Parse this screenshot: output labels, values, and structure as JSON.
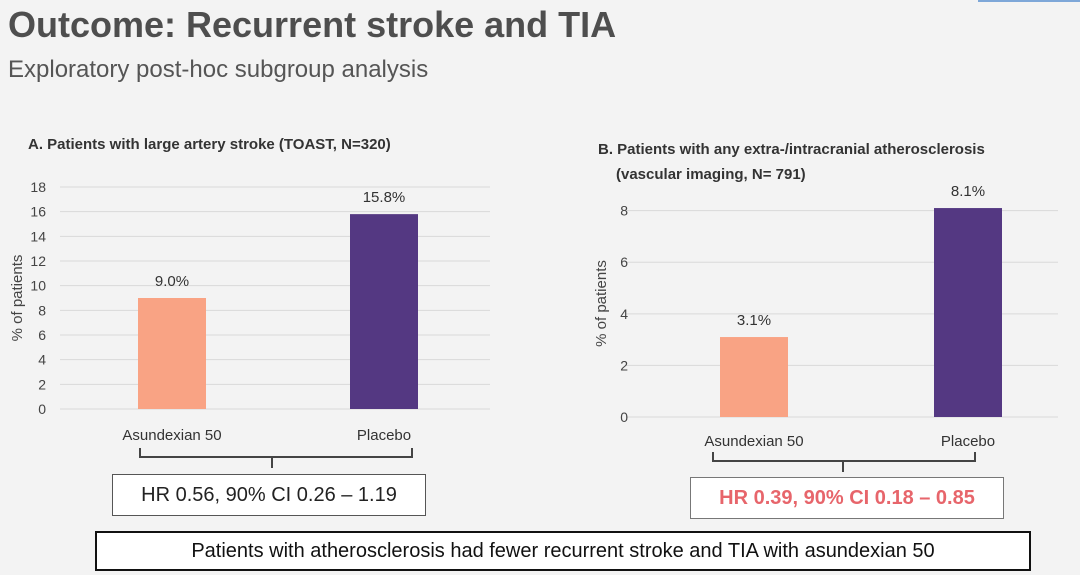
{
  "header": {
    "title": "Outcome: Recurrent stroke and TIA",
    "subtitle": "Exploratory post-hoc subgroup analysis"
  },
  "colors": {
    "asundexian": "#f9a384",
    "placebo": "#543882",
    "grid": "#d9d9d9",
    "hr_b_text": "#e7656b"
  },
  "chart_data": [
    {
      "type": "bar",
      "title": "A. Patients with large artery stroke (TOAST, N=320)",
      "ylabel": "% of patients",
      "categories": [
        "Asundexian 50",
        "Placebo"
      ],
      "values": [
        9.0,
        15.8
      ],
      "data_labels": [
        "9.0%",
        "15.8%"
      ],
      "ylim": [
        0,
        18
      ],
      "yticks": [
        0,
        2,
        4,
        6,
        8,
        10,
        12,
        14,
        16,
        18
      ],
      "grid": true,
      "annotation": "HR 0.56, 90% CI 0.26 – 1.19"
    },
    {
      "type": "bar",
      "title_lines": [
        "B. Patients with any extra-/intracranial atherosclerosis",
        "(vascular imaging, N= 791)"
      ],
      "ylabel": "% of patients",
      "categories": [
        "Asundexian 50",
        "Placebo"
      ],
      "values": [
        3.1,
        8.1
      ],
      "data_labels": [
        "3.1%",
        "8.1%"
      ],
      "ylim": [
        0,
        8.8
      ],
      "yticks": [
        0,
        2,
        4,
        6,
        8
      ],
      "grid": true,
      "annotation": "HR 0.39, 90% CI 0.18 – 0.85"
    }
  ],
  "conclusion": "Patients with atherosclerosis had fewer recurrent stroke and TIA with asundexian 50"
}
